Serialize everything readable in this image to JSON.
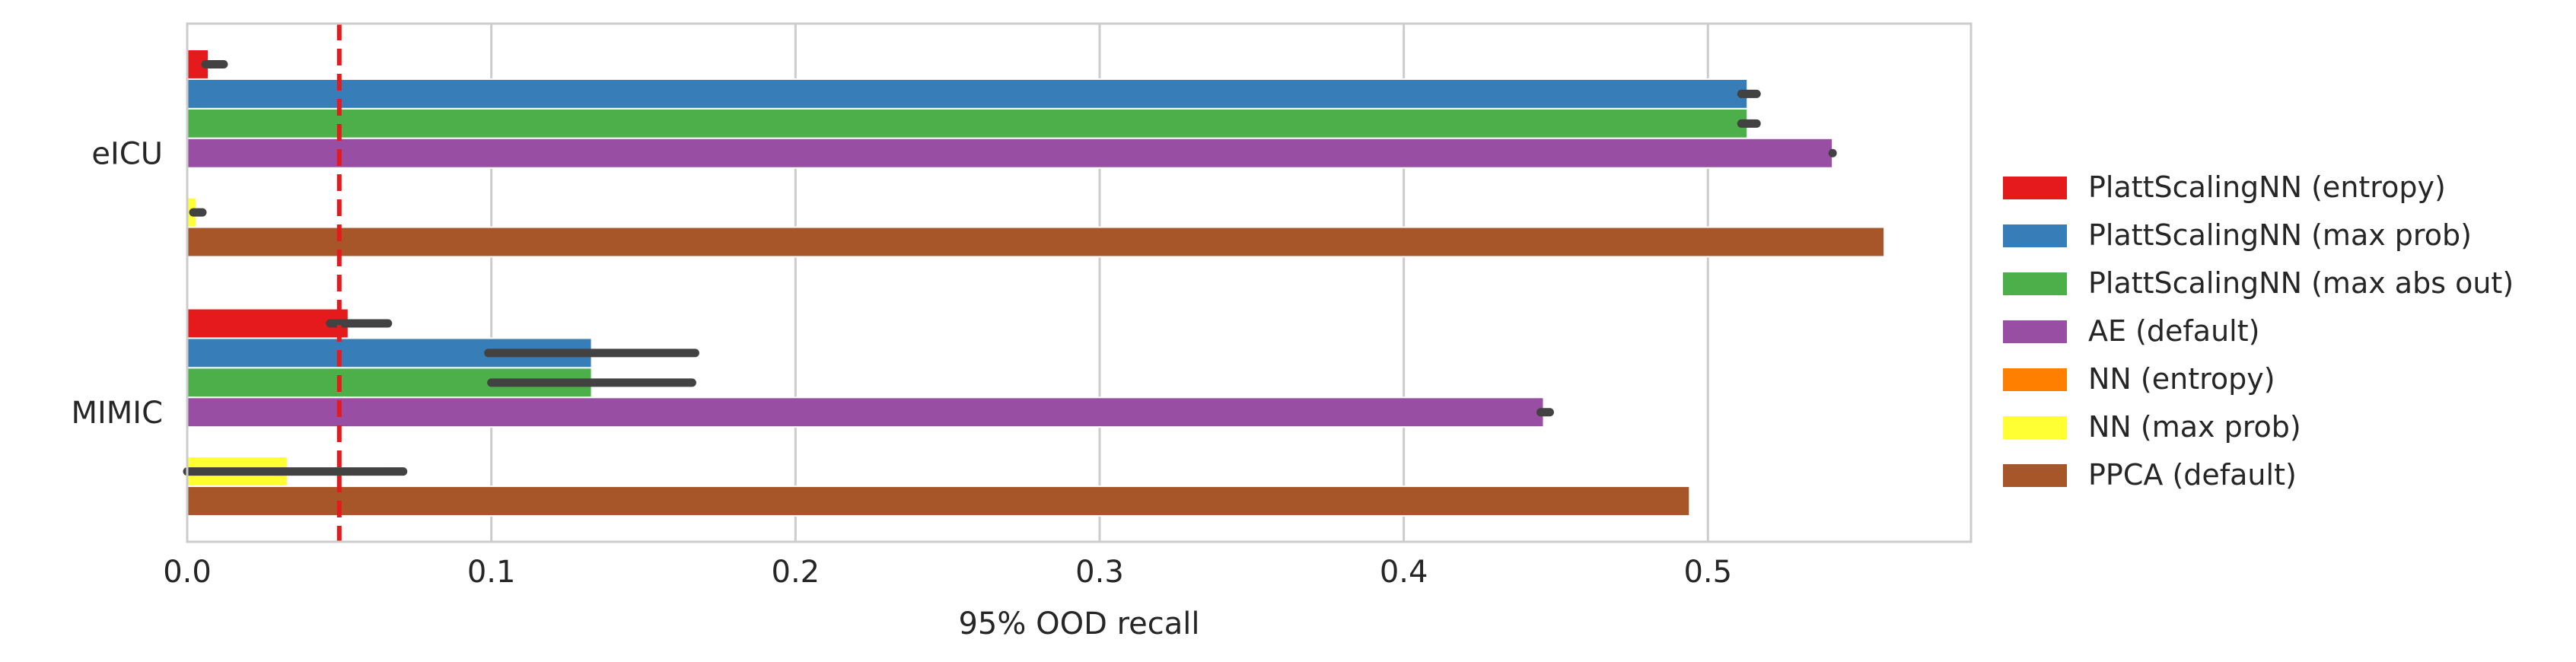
{
  "chart_data": {
    "type": "bar",
    "orientation": "horizontal",
    "xlabel": "95% OOD recall",
    "ylabel": "",
    "xlim": [
      0.0,
      0.5865
    ],
    "xticks": [
      0.0,
      0.1,
      0.2,
      0.3,
      0.4,
      0.5
    ],
    "xtick_labels": [
      "0.0",
      "0.1",
      "0.2",
      "0.3",
      "0.4",
      "0.5"
    ],
    "grid": true,
    "legend_position": "right",
    "categories": [
      "eICU",
      "MIMIC"
    ],
    "reference_line": {
      "x": 0.05,
      "style": "dashed",
      "color": "#e41a1c"
    },
    "series": [
      {
        "name": "PlattScalingNN (entropy)",
        "color": "#e41a1c",
        "values": [
          0.007,
          0.053
        ],
        "error": [
          [
            0.006,
            0.012
          ],
          [
            0.047,
            0.066
          ]
        ]
      },
      {
        "name": "PlattScalingNN (max prob)",
        "color": "#377eb8",
        "values": [
          0.513,
          0.133
        ],
        "error": [
          [
            0.511,
            0.516
          ],
          [
            0.099,
            0.167
          ]
        ]
      },
      {
        "name": "PlattScalingNN (max abs out)",
        "color": "#4daf4a",
        "values": [
          0.513,
          0.133
        ],
        "error": [
          [
            0.511,
            0.516
          ],
          [
            0.1,
            0.166
          ]
        ]
      },
      {
        "name": "AE (default)",
        "color": "#984ea3",
        "values": [
          0.541,
          0.446
        ],
        "error": [
          [
            0.541,
            0.541
          ],
          [
            0.445,
            0.448
          ]
        ]
      },
      {
        "name": "NN (entropy)",
        "color": "#ff7f00",
        "values": [
          0.0,
          0.0
        ],
        "error": [
          null,
          null
        ]
      },
      {
        "name": "NN (max prob)",
        "color": "#ffff33",
        "values": [
          0.003,
          0.033
        ],
        "error": [
          [
            0.002,
            0.005
          ],
          [
            0.0,
            0.071
          ]
        ]
      },
      {
        "name": "PPCA (default)",
        "color": "#a65628",
        "values": [
          0.558,
          0.494
        ],
        "error": [
          null,
          null
        ]
      }
    ]
  }
}
